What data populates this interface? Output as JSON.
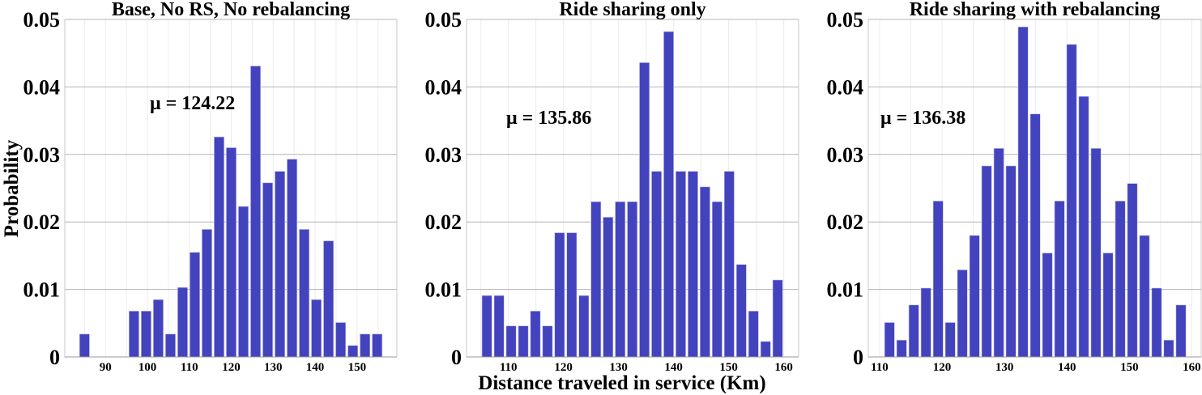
{
  "figure": {
    "ylabel": "Probability",
    "xlabel": "Distance traveled in service (Km)",
    "bar_color": "#4343be",
    "grid_color": "#b4b4b4"
  },
  "chart_data": [
    {
      "type": "bar",
      "title": "Base, No RS, No rebalancing",
      "annotation": "μ = 124.22",
      "xlim": [
        80.3,
        159.5
      ],
      "ylim": [
        0,
        0.05
      ],
      "grid": true,
      "xticks": [
        90,
        100,
        110,
        120,
        130,
        140,
        150
      ],
      "yticks": [
        "0",
        "0.01",
        "0.02",
        "0.03",
        "0.04",
        "0.05"
      ],
      "bin_width": 2.9,
      "x": [
        85.0,
        87.9,
        90.8,
        93.9,
        96.8,
        99.7,
        102.6,
        105.5,
        108.4,
        111.3,
        114.2,
        117.1,
        120.0,
        122.9,
        125.8,
        128.7,
        131.6,
        134.5,
        137.4,
        140.3,
        143.2,
        146.1,
        149.0,
        151.9,
        154.8
      ],
      "values": [
        0.0034,
        0,
        0,
        0,
        0.0068,
        0.0068,
        0.0085,
        0.0034,
        0.0103,
        0.0155,
        0.0189,
        0.0326,
        0.031,
        0.0223,
        0.0431,
        0.0258,
        0.0275,
        0.0293,
        0.0189,
        0.0085,
        0.0172,
        0.0051,
        0.0017,
        0.0034,
        0.0034
      ]
    },
    {
      "type": "bar",
      "title": "Ride sharing only",
      "annotation": "μ = 135.86",
      "xlim": [
        102.4,
        162.7
      ],
      "ylim": [
        0,
        0.05
      ],
      "grid": true,
      "xticks": [
        110,
        120,
        130,
        140,
        150,
        160
      ],
      "yticks": [
        "0",
        "0.01",
        "0.02",
        "0.03",
        "0.04",
        "0.05"
      ],
      "bin_width": 2.2,
      "x": [
        106.1,
        108.3,
        110.5,
        112.7,
        114.9,
        117.1,
        119.3,
        121.5,
        123.7,
        125.9,
        128.1,
        130.3,
        132.5,
        134.7,
        136.9,
        139.1,
        141.3,
        143.5,
        145.7,
        147.9,
        150.1,
        152.3,
        154.5,
        156.7,
        158.9
      ],
      "values": [
        0.0091,
        0.0091,
        0.0046,
        0.0046,
        0.0068,
        0.0046,
        0.0184,
        0.0184,
        0.0091,
        0.023,
        0.0207,
        0.023,
        0.023,
        0.0436,
        0.0275,
        0.0482,
        0.0275,
        0.0275,
        0.0252,
        0.023,
        0.0275,
        0.0137,
        0.0068,
        0.0023,
        0.0114
      ]
    },
    {
      "type": "bar",
      "title": "Ride sharing with rebalancing",
      "annotation": "μ = 136.38",
      "xlim": [
        108.2,
        161.5
      ],
      "ylim": [
        0,
        0.05
      ],
      "grid": true,
      "xticks": [
        110,
        120,
        130,
        140,
        150,
        160
      ],
      "yticks": [
        "0",
        "0.01",
        "0.02",
        "0.03",
        "0.04",
        "0.05"
      ],
      "bin_width": 1.944,
      "x": [
        111.6,
        113.54,
        115.49,
        117.43,
        119.38,
        121.32,
        123.26,
        125.21,
        127.15,
        129.1,
        131.04,
        132.98,
        134.93,
        136.87,
        138.82,
        140.76,
        142.7,
        144.65,
        146.59,
        148.54,
        150.48,
        152.42,
        154.37,
        156.31,
        158.26
      ],
      "values": [
        0.0051,
        0.0025,
        0.0077,
        0.0102,
        0.0231,
        0.0051,
        0.0129,
        0.018,
        0.0283,
        0.0309,
        0.0283,
        0.0489,
        0.036,
        0.0154,
        0.0231,
        0.0463,
        0.0386,
        0.0309,
        0.0154,
        0.0231,
        0.0257,
        0.018,
        0.0102,
        0.0025,
        0.0077
      ]
    }
  ]
}
